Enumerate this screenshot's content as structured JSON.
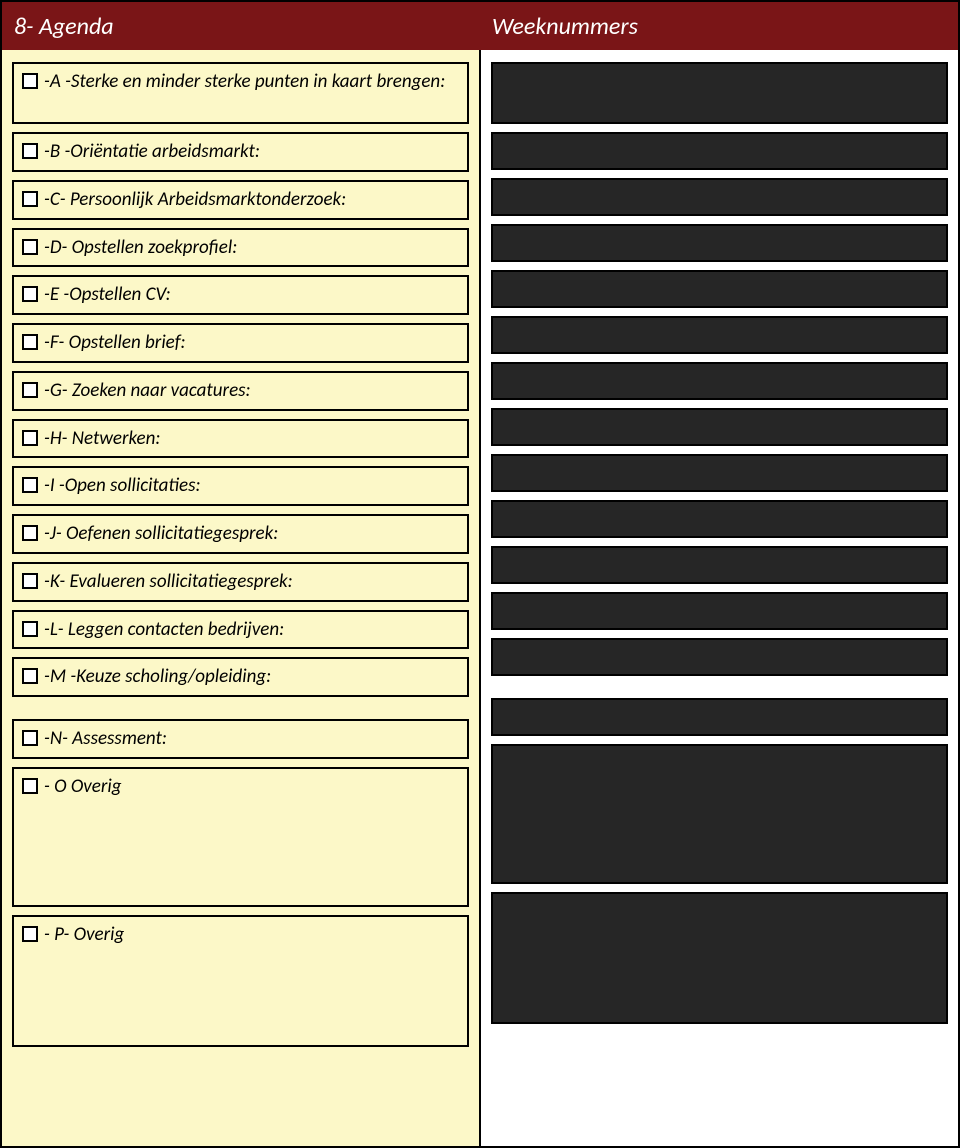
{
  "header": {
    "left": "8- Agenda",
    "right": "Weeknummers"
  },
  "colors": {
    "header_bg": "#7a1517",
    "header_text": "#ffffff",
    "left_bg": "#fcf8c8",
    "box_border": "#000000",
    "dark_box_bg": "#262626"
  },
  "items": [
    {
      "label": "-A -Sterke en minder sterke punten in kaart brengen:",
      "tall": false,
      "multiline": true
    },
    {
      "label": "-B -Oriëntatie arbeidsmarkt:",
      "tall": false
    },
    {
      "label": "-C- Persoonlijk Arbeidsmarktonderzoek:",
      "tall": false
    },
    {
      "label": "-D- Opstellen zoekprofiel:",
      "tall": false
    },
    {
      "label": "-E -Opstellen CV:",
      "tall": false
    },
    {
      "label": "-F- Opstellen brief:",
      "tall": false
    },
    {
      "label": "-G- Zoeken naar vacatures:",
      "tall": false
    },
    {
      "label": "-H- Netwerken:",
      "tall": false
    },
    {
      "label": "-I -Open sollicitaties:",
      "tall": false
    },
    {
      "label": "-J- Oefenen sollicitatiegesprek:",
      "tall": false
    },
    {
      "label": "-K- Evalueren sollicitatiegesprek:",
      "tall": false
    },
    {
      "label": "-L- Leggen contacten bedrijven:",
      "tall": false
    },
    {
      "label": "-M -Keuze scholing/opleiding:",
      "tall": false,
      "gapAfter": true
    },
    {
      "label": "-N- Assessment:",
      "tall": false
    },
    {
      "label": "- O Overig",
      "tall": "tall"
    },
    {
      "label": "- P- Overig",
      "tall": "tall2"
    }
  ]
}
